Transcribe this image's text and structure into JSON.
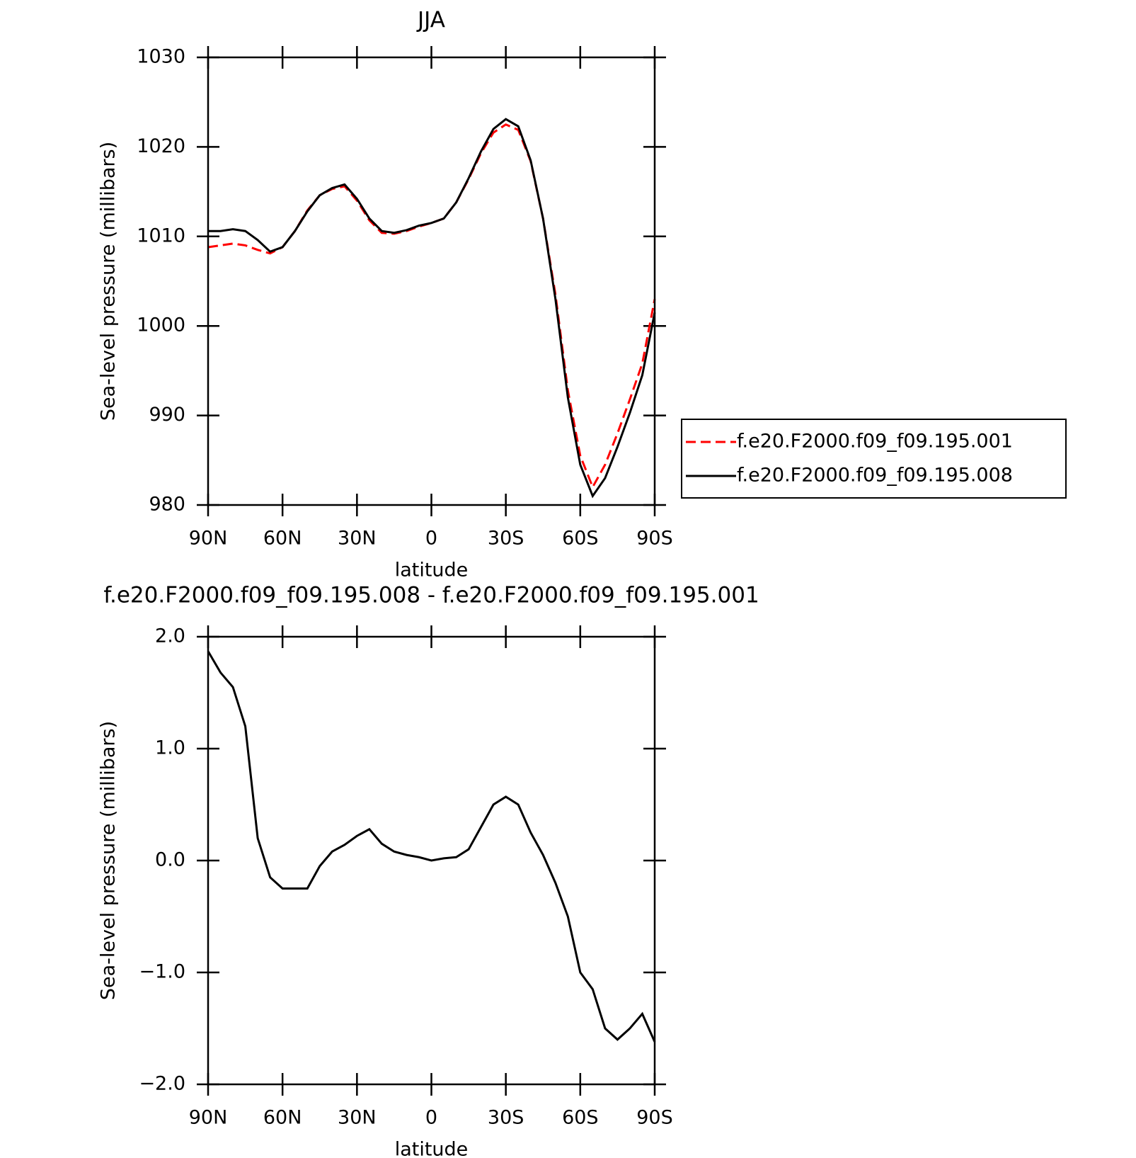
{
  "chart_data": [
    {
      "type": "line",
      "title": "JJA",
      "xlabel": "latitude",
      "ylabel": "Sea-level pressure (millibars)",
      "x": [
        90,
        85,
        80,
        75,
        70,
        65,
        60,
        55,
        50,
        45,
        40,
        35,
        30,
        25,
        20,
        15,
        10,
        5,
        0,
        -5,
        -10,
        -15,
        -20,
        -25,
        -30,
        -35,
        -40,
        -45,
        -50,
        -55,
        -60,
        -65,
        -70,
        -75,
        -80,
        -85,
        -90
      ],
      "series": [
        {
          "name": "f.e20.F2000.f09_f09.195.001",
          "color": "#ff0000",
          "style": "dashed",
          "values": [
            1008.8,
            1009.0,
            1009.2,
            1009.0,
            1008.5,
            1008.1,
            1008.8,
            1010.6,
            1012.9,
            1014.6,
            1015.3,
            1015.6,
            1014.0,
            1011.8,
            1010.4,
            1010.3,
            1010.6,
            1011.1,
            1011.5,
            1012.0,
            1013.8,
            1016.4,
            1019.3,
            1021.6,
            1022.5,
            1021.9,
            1018.4,
            1012.0,
            1003.5,
            992.8,
            985.5,
            982.0,
            984.5,
            988.0,
            991.8,
            995.8,
            1003.0
          ]
        },
        {
          "name": "f.e20.F2000.f09_f09.195.008",
          "color": "#000000",
          "style": "solid",
          "values": [
            1010.6,
            1010.6,
            1010.8,
            1010.6,
            1009.6,
            1008.3,
            1008.8,
            1010.6,
            1012.8,
            1014.6,
            1015.4,
            1015.8,
            1014.2,
            1012.0,
            1010.6,
            1010.4,
            1010.7,
            1011.2,
            1011.5,
            1012.0,
            1013.8,
            1016.5,
            1019.5,
            1022.0,
            1023.1,
            1022.3,
            1018.5,
            1012.0,
            1003.0,
            992.0,
            984.5,
            981.0,
            983.0,
            986.5,
            990.3,
            994.5,
            1001.5
          ]
        }
      ],
      "xlim": [
        90,
        -90
      ],
      "xticks": [
        {
          "value": 90,
          "label": "90N"
        },
        {
          "value": 60,
          "label": "60N"
        },
        {
          "value": 30,
          "label": "30N"
        },
        0,
        {
          "value": -30,
          "label": "30S"
        },
        {
          "value": -60,
          "label": "60S"
        },
        {
          "value": -90,
          "label": "90S"
        }
      ],
      "ylim": [
        980,
        1030
      ],
      "yticks": [
        980,
        990,
        1000,
        1010,
        1020,
        1030
      ],
      "legend": "outside right"
    },
    {
      "type": "line",
      "title": "f.e20.F2000.f09_f09.195.008 - f.e20.F2000.f09_f09.195.001",
      "xlabel": "latitude",
      "ylabel": "Sea-level pressure (millibars)",
      "x": [
        90,
        85,
        80,
        75,
        70,
        65,
        60,
        55,
        50,
        45,
        40,
        35,
        30,
        25,
        20,
        15,
        10,
        5,
        0,
        -5,
        -10,
        -15,
        -20,
        -25,
        -30,
        -35,
        -40,
        -45,
        -50,
        -55,
        -60,
        -65,
        -70,
        -75,
        -80,
        -85,
        -90
      ],
      "series": [
        {
          "color": "#000000",
          "style": "solid",
          "values": [
            1.87,
            1.68,
            1.55,
            1.2,
            0.2,
            -0.15,
            -0.25,
            -0.25,
            -0.25,
            -0.05,
            0.08,
            0.14,
            0.22,
            0.28,
            0.15,
            0.08,
            0.05,
            0.03,
            0.0,
            0.02,
            0.03,
            0.1,
            0.3,
            0.5,
            0.57,
            0.5,
            0.25,
            0.05,
            -0.2,
            -0.5,
            -1.0,
            -1.15,
            -1.5,
            -1.6,
            -1.5,
            -1.37,
            -1.62
          ]
        }
      ],
      "xlim": [
        90,
        -90
      ],
      "xticks": [
        {
          "value": 90,
          "label": "90N"
        },
        {
          "value": 60,
          "label": "60N"
        },
        {
          "value": 30,
          "label": "30N"
        },
        0,
        {
          "value": -30,
          "label": "30S"
        },
        {
          "value": -60,
          "label": "60S"
        },
        {
          "value": -90,
          "label": "90S"
        }
      ],
      "ylim": [
        -2,
        2
      ],
      "yticks": [
        {
          "value": -2,
          "label": "−2.0"
        },
        {
          "value": -1,
          "label": "−1.0"
        },
        {
          "value": 0,
          "label": "0.0"
        },
        {
          "value": 1,
          "label": "1.0"
        },
        {
          "value": 2,
          "label": "2.0"
        }
      ]
    }
  ]
}
